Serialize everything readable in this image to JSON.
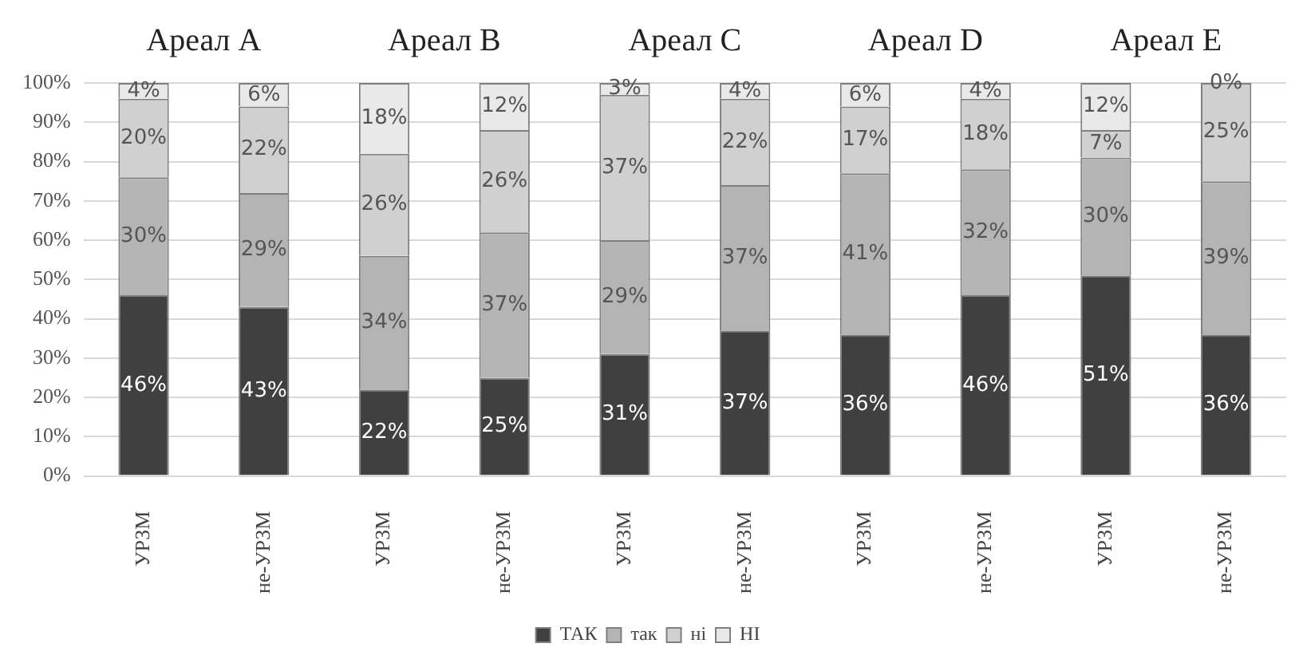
{
  "chart_data": {
    "type": "bar",
    "stacked": true,
    "categories": [
      "УРЗМ",
      "не-УРЗМ",
      "УРЗМ",
      "не-УРЗМ",
      "УРЗМ",
      "не-УРЗМ",
      "УРЗМ",
      "не-УРЗМ",
      "УРЗМ",
      "не-УРЗМ"
    ],
    "annotations": [
      "Ареал A",
      "Ареал B",
      "Ареал C",
      "Ареал D",
      "Ареал E"
    ],
    "series": [
      {
        "name": "ТАК",
        "color": "#404040",
        "values": [
          46,
          43,
          22,
          25,
          31,
          37,
          36,
          46,
          51,
          36
        ],
        "value_labels": [
          "46%",
          "43%",
          "22%",
          "25%",
          "31%",
          "37%",
          "36%",
          "46%",
          "51%",
          "36%"
        ]
      },
      {
        "name": "так",
        "color": "#b4b4b4",
        "values": [
          30,
          29,
          34,
          37,
          29,
          37,
          41,
          32,
          30,
          39
        ],
        "value_labels": [
          "30%",
          "29%",
          "34%",
          "37%",
          "29%",
          "37%",
          "41%",
          "32%",
          "30%",
          "39%"
        ]
      },
      {
        "name": "ні",
        "color": "#d0d0d0",
        "values": [
          20,
          22,
          26,
          26,
          37,
          22,
          17,
          18,
          7,
          25
        ],
        "value_labels": [
          "20%",
          "22%",
          "26%",
          "26%",
          "37%",
          "22%",
          "17%",
          "18%",
          "7%",
          "25%"
        ]
      },
      {
        "name": "НІ",
        "color": "#e9e9e9",
        "values": [
          4,
          6,
          18,
          12,
          3,
          4,
          6,
          4,
          12,
          0
        ],
        "value_labels": [
          "4%",
          "6%",
          "18%",
          "12%",
          "3%",
          "4%",
          "6%",
          "4%",
          "12%",
          "0%"
        ]
      }
    ],
    "ylim": [
      0,
      100
    ],
    "yticks": [
      {
        "value": 0,
        "label": "0%"
      },
      {
        "value": 10,
        "label": "10%"
      },
      {
        "value": 20,
        "label": "20%"
      },
      {
        "value": 30,
        "label": "30%"
      },
      {
        "value": 40,
        "label": "40%"
      },
      {
        "value": 50,
        "label": "50%"
      },
      {
        "value": 60,
        "label": "60%"
      },
      {
        "value": 70,
        "label": "70%"
      },
      {
        "value": 80,
        "label": "80%"
      },
      {
        "value": 90,
        "label": "90%"
      },
      {
        "value": 100,
        "label": "100%"
      }
    ],
    "grid": "y",
    "legend": "bottom"
  }
}
